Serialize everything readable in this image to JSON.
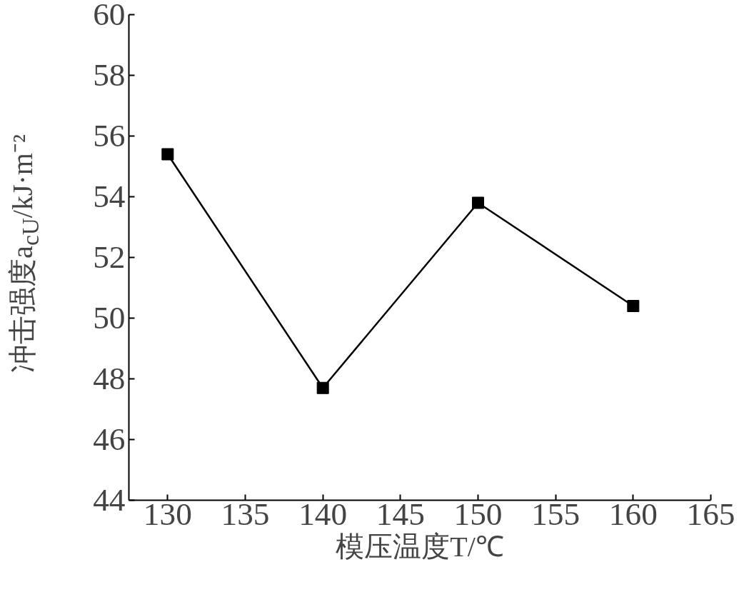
{
  "chart_data": {
    "type": "line",
    "xlabel": "模压温度T/℃",
    "ylabel": "冲击强度a$_{cU}$/kJ·m⁻²",
    "x": [
      130,
      140,
      150,
      160
    ],
    "series": [
      {
        "color": "#000000",
        "values": [
          55.4,
          47.7,
          53.8,
          50.4
        ]
      }
    ],
    "xlim": [
      127.5,
      165
    ],
    "xticks": [
      130,
      135,
      140,
      145,
      150,
      155,
      160,
      165
    ],
    "ylim": [
      44,
      60
    ],
    "yticks": [
      44,
      46,
      48,
      50,
      52,
      54,
      56,
      58,
      60
    ],
    "grid": false,
    "marker": "square",
    "line_style": "solid"
  }
}
